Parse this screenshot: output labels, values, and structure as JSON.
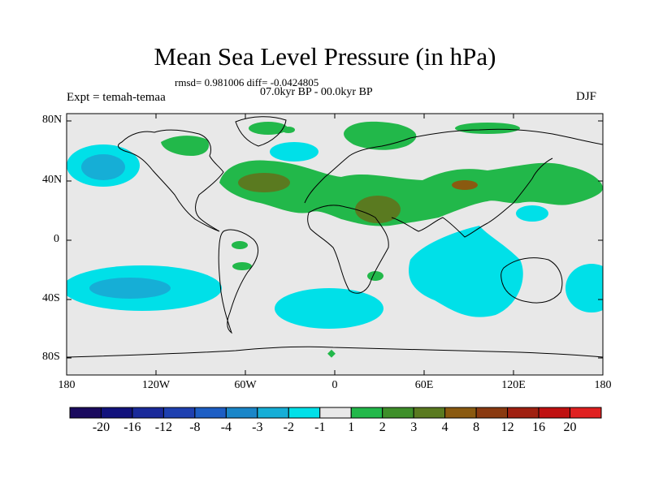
{
  "title": "Mean Sea Level Pressure (in hPa)",
  "stats": "rmsd= 0.981006 diff= -0.0424805",
  "period": "07.0kyr BP - 00.0kyr BP",
  "experiment": "Expt = temah-temaa",
  "season": "DJF",
  "lat_labels": [
    "80N",
    "40N",
    "0",
    "40S",
    "80S"
  ],
  "lon_labels": [
    "180",
    "120W",
    "60W",
    "0",
    "60E",
    "120E",
    "180"
  ],
  "colorbar": {
    "labels": [
      "-20",
      "-16",
      "-12",
      "-8",
      "-4",
      "-3",
      "-2",
      "-1",
      "1",
      "2",
      "3",
      "4",
      "8",
      "12",
      "16",
      "20"
    ],
    "colors": [
      "#1a0a5e",
      "#12127c",
      "#1a2a9a",
      "#1e40b0",
      "#1d5ec4",
      "#1a86c8",
      "#16aed6",
      "#00e0e8",
      "#e8e8e8",
      "#22b84a",
      "#3e8f2a",
      "#5a7a20",
      "#8a5a10",
      "#8a3a10",
      "#a02010",
      "#c01010",
      "#e02020"
    ]
  },
  "colors": {
    "background": "#e8e8e8",
    "positive_light": "#22b84a",
    "positive_mid": "#5a7a20",
    "negative_light": "#00e0e8",
    "negative_mid": "#16aed6",
    "negative_strong": "#1a86c8"
  }
}
